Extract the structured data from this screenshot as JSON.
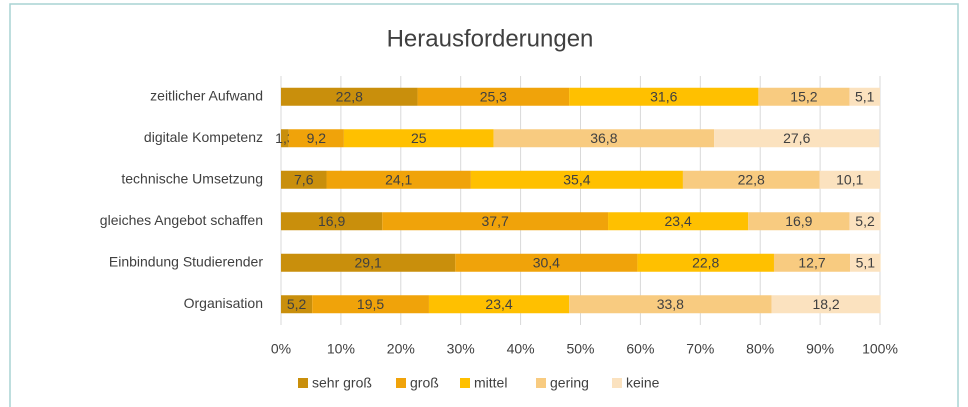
{
  "chart_data": {
    "type": "stacked_barh",
    "title": "Herausforderungen",
    "categories": [
      "zeitlicher Aufwand",
      "digitale Kompetenz",
      "technische Umsetzung",
      "gleiches Angebot schaffen",
      "Einbindung Studierender",
      "Organisation"
    ],
    "series": [
      {
        "name": "sehr groß",
        "color": "#c98f0c",
        "values": [
          22.8,
          1.3,
          7.6,
          16.9,
          29.1,
          5.2
        ],
        "value_labels": [
          "22,8",
          "1,3",
          "7,6",
          "16,9",
          "29,1",
          "5,2"
        ]
      },
      {
        "name": "groß",
        "color": "#f0a30a",
        "values": [
          25.3,
          9.2,
          24.1,
          37.7,
          30.4,
          19.5
        ],
        "value_labels": [
          "25,3",
          "9,2",
          "24,1",
          "37,7",
          "30,4",
          "19,5"
        ]
      },
      {
        "name": "mittel",
        "color": "#ffc000",
        "values": [
          31.6,
          25,
          35.4,
          23.4,
          22.8,
          23.4
        ],
        "value_labels": [
          "31,6",
          "25",
          "35,4",
          "23,4",
          "22,8",
          "23,4"
        ]
      },
      {
        "name": "gering",
        "color": "#f8cb80",
        "values": [
          15.2,
          36.8,
          22.8,
          16.9,
          12.7,
          33.8
        ],
        "value_labels": [
          "15,2",
          "36,8",
          "22,8",
          "16,9",
          "12,7",
          "33,8"
        ]
      },
      {
        "name": "keine",
        "color": "#fbe2bf",
        "values": [
          5.1,
          27.6,
          10.1,
          5.2,
          5.1,
          18.2
        ],
        "value_labels": [
          "5,1",
          "27,6",
          "10,1",
          "5,2",
          "5,1",
          "18,2"
        ]
      }
    ],
    "xlim": [
      0,
      100
    ],
    "xticks": [
      {
        "value": 0,
        "label": "0%"
      },
      {
        "value": 10,
        "label": "10%"
      },
      {
        "value": 20,
        "label": "20%"
      },
      {
        "value": 30,
        "label": "30%"
      },
      {
        "value": 40,
        "label": "40%"
      },
      {
        "value": 50,
        "label": "50%"
      },
      {
        "value": 60,
        "label": "60%"
      },
      {
        "value": 70,
        "label": "70%"
      },
      {
        "value": 80,
        "label": "80%"
      },
      {
        "value": 90,
        "label": "90%"
      },
      {
        "value": 100,
        "label": "100%"
      }
    ],
    "grid": true,
    "legend": "bottom"
  }
}
